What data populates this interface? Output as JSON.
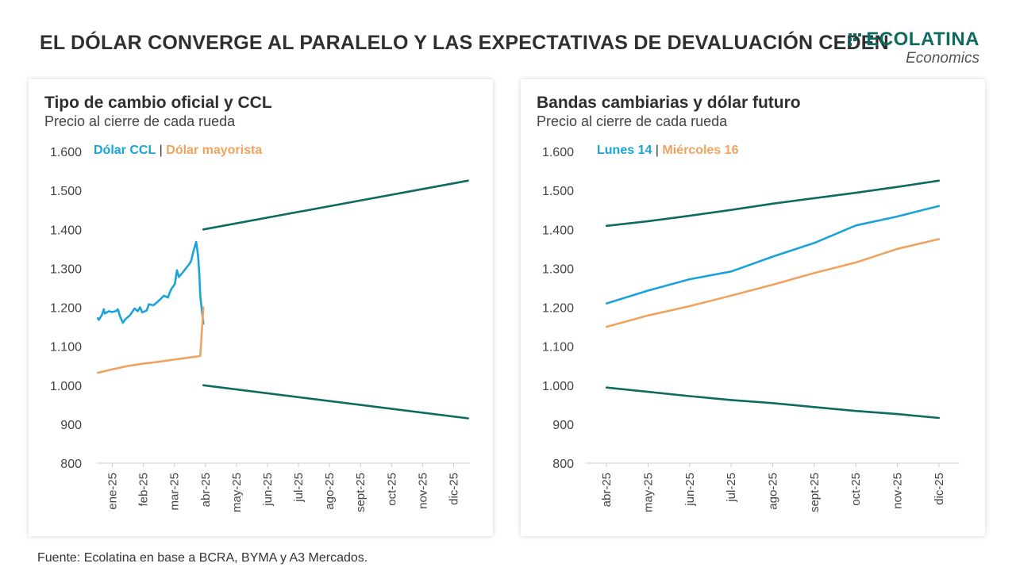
{
  "title": "EL DÓLAR CONVERGE AL PARALELO Y LAS EXPECTATIVAS DE DEVALUACIÓN CEDEN",
  "brand": {
    "name": "ECOLATINA",
    "sub": "Economics",
    "color": "#0e6b5f"
  },
  "source": "Fuente: Ecolatina en base a BCRA, BYMA y A3 Mercados.",
  "colors": {
    "ccl": "#1aa3d9",
    "mayorista": "#f0a35e",
    "bands": "#0e6b5f",
    "axis": "#cccccc",
    "tick": "#444444"
  },
  "chart_data": [
    {
      "type": "line",
      "title": "Tipo de cambio oficial y CCL",
      "subtitle": "Precio al cierre de cada rueda",
      "ylim": [
        800,
        1600
      ],
      "y_ticks": [
        800,
        900,
        1000,
        1100,
        1200,
        1300,
        1400,
        1500,
        1600
      ],
      "y_tick_labels": [
        "800",
        "900",
        "1.000",
        "1.100",
        "1.200",
        "1.300",
        "1.400",
        "1.500",
        "1.600"
      ],
      "categories": [
        "ene-25",
        "feb-25",
        "mar-25",
        "abr-25",
        "may-25",
        "jun-25",
        "jul-25",
        "ago-25",
        "sept-25",
        "oct-25",
        "nov-25",
        "dic-25"
      ],
      "legend": [
        {
          "label": "Dólar CCL",
          "color": "#1aa3d9"
        },
        {
          "label": "Dólar mayorista",
          "color": "#f0a35e"
        }
      ],
      "series": [
        {
          "name": "Dólar CCL",
          "color": "#1aa3d9",
          "points": [
            [
              "2025-01-02",
              1172
            ],
            [
              "2025-01-03",
              1168
            ],
            [
              "2025-01-06",
              1180
            ],
            [
              "2025-01-08",
              1195
            ],
            [
              "2025-01-09",
              1184
            ],
            [
              "2025-01-13",
              1190
            ],
            [
              "2025-01-16",
              1188
            ],
            [
              "2025-01-20",
              1190
            ],
            [
              "2025-01-22",
              1195
            ],
            [
              "2025-01-24",
              1178
            ],
            [
              "2025-01-27",
              1160
            ],
            [
              "2025-01-29",
              1168
            ],
            [
              "2025-02-03",
              1180
            ],
            [
              "2025-02-07",
              1197
            ],
            [
              "2025-02-10",
              1190
            ],
            [
              "2025-02-12",
              1200
            ],
            [
              "2025-02-14",
              1187
            ],
            [
              "2025-02-18",
              1192
            ],
            [
              "2025-02-20",
              1208
            ],
            [
              "2025-02-24",
              1205
            ],
            [
              "2025-02-27",
              1212
            ],
            [
              "2025-03-03",
              1222
            ],
            [
              "2025-03-06",
              1230
            ],
            [
              "2025-03-10",
              1225
            ],
            [
              "2025-03-13",
              1245
            ],
            [
              "2025-03-17",
              1260
            ],
            [
              "2025-03-19",
              1295
            ],
            [
              "2025-03-21",
              1278
            ],
            [
              "2025-03-25",
              1290
            ],
            [
              "2025-03-28",
              1300
            ],
            [
              "2025-03-31",
              1310
            ],
            [
              "2025-04-02",
              1318
            ],
            [
              "2025-04-04",
              1340
            ],
            [
              "2025-04-07",
              1368
            ],
            [
              "2025-04-08",
              1350
            ],
            [
              "2025-04-09",
              1328
            ],
            [
              "2025-04-10",
              1290
            ],
            [
              "2025-04-11",
              1230
            ],
            [
              "2025-04-14",
              1158
            ]
          ]
        },
        {
          "name": "Dólar mayorista",
          "color": "#f0a35e",
          "points": [
            [
              "2025-01-02",
              1032
            ],
            [
              "2025-01-15",
              1040
            ],
            [
              "2025-01-31",
              1049
            ],
            [
              "2025-02-14",
              1055
            ],
            [
              "2025-02-28",
              1060
            ],
            [
              "2025-03-14",
              1065
            ],
            [
              "2025-03-31",
              1071
            ],
            [
              "2025-04-11",
              1075
            ],
            [
              "2025-04-14",
              1200
            ]
          ]
        },
        {
          "name": "",
          "color": "#0e6b5f",
          "points": [
            [
              "2025-04-14",
              1400
            ],
            [
              "2025-12-31",
              1525
            ]
          ]
        },
        {
          "name": "",
          "color": "#0e6b5f",
          "points": [
            [
              "2025-04-14",
              1000
            ],
            [
              "2025-12-31",
              915
            ]
          ]
        }
      ]
    },
    {
      "type": "line",
      "title": "Bandas cambiarias y dólar futuro",
      "subtitle": "Precio al cierre de cada rueda",
      "ylim": [
        800,
        1600
      ],
      "y_ticks": [
        800,
        900,
        1000,
        1100,
        1200,
        1300,
        1400,
        1500,
        1600
      ],
      "y_tick_labels": [
        "800",
        "900",
        "1.000",
        "1.100",
        "1.200",
        "1.300",
        "1.400",
        "1.500",
        "1.600"
      ],
      "categories": [
        "abr-25",
        "may-25",
        "jun-25",
        "jul-25",
        "ago-25",
        "sept-25",
        "oct-25",
        "nov-25",
        "dic-25"
      ],
      "legend": [
        {
          "label": "Lunes 14",
          "color": "#1aa3d9"
        },
        {
          "label": "Miércoles 16",
          "color": "#f0a35e"
        }
      ],
      "series": [
        {
          "name": "",
          "color": "#0e6b5f",
          "values": [
            1409,
            1421,
            1435,
            1450,
            1466,
            1480,
            1494,
            1509,
            1525
          ]
        },
        {
          "name": "Lunes 14",
          "color": "#1aa3d9",
          "values": [
            1210,
            1243,
            1272,
            1292,
            1330,
            1365,
            1410,
            1433,
            1460
          ]
        },
        {
          "name": "Miércoles 16",
          "color": "#f0a35e",
          "values": [
            1150,
            1179,
            1203,
            1230,
            1258,
            1288,
            1315,
            1350,
            1375
          ]
        },
        {
          "name": "",
          "color": "#0e6b5f",
          "values": [
            994,
            983,
            972,
            962,
            954,
            944,
            934,
            926,
            916
          ]
        }
      ]
    }
  ]
}
